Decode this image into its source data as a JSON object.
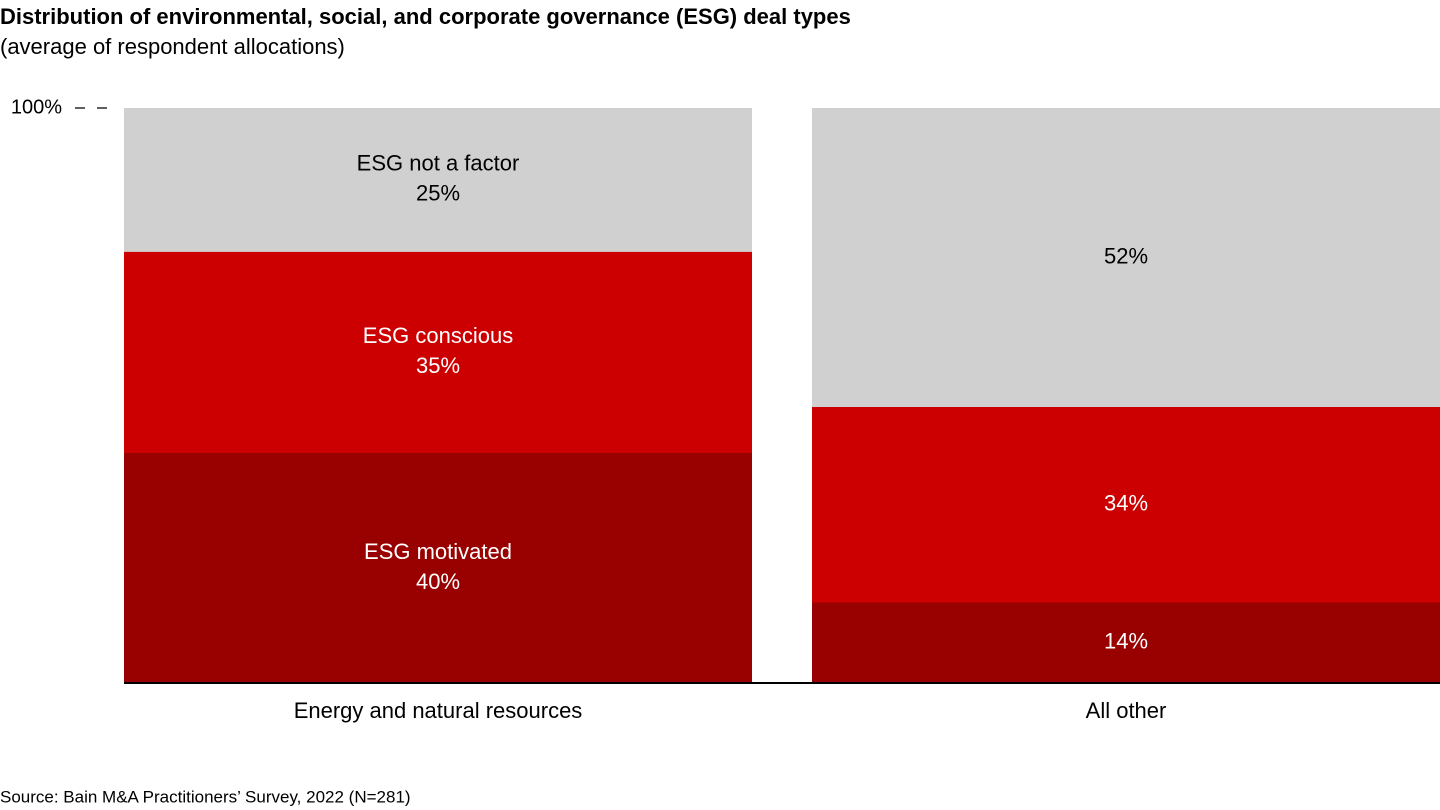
{
  "chart_data": {
    "type": "stacked_bar",
    "title": "Distribution of environmental, social, and corporate governance (ESG) deal types",
    "subtitle": "(average of respondent allocations)",
    "categories": [
      "Energy and natural resources",
      "All other"
    ],
    "series": [
      {
        "name": "ESG motivated",
        "color": "#990000",
        "values": [
          40,
          14
        ],
        "value_labels": [
          "40%",
          "14%"
        ]
      },
      {
        "name": "ESG conscious",
        "color": "#cc0000",
        "values": [
          35,
          34
        ],
        "value_labels": [
          "35%",
          "34%"
        ]
      },
      {
        "name": "ESG not a factor",
        "color": "#d0d0d0",
        "values": [
          25,
          52
        ],
        "value_labels": [
          "25%",
          "52%"
        ]
      }
    ],
    "ylim": [
      0,
      100
    ],
    "yticks": [
      {
        "value": 100,
        "label": "100%"
      }
    ],
    "source": "Source: Bain M&A Practitioners’ Survey, 2022 (N=281)"
  }
}
